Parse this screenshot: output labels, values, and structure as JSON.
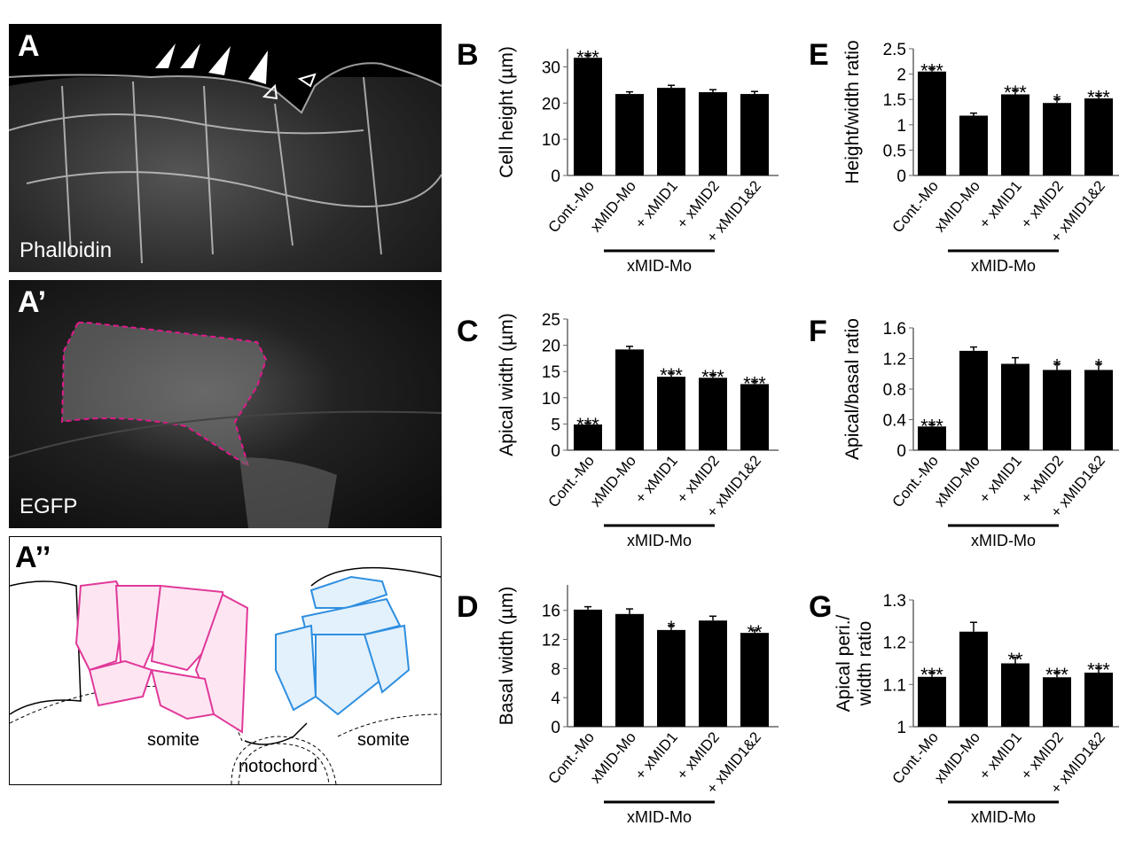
{
  "panels_images": {
    "A": {
      "letter": "A",
      "stain": "Phalloidin"
    },
    "A1": {
      "letter": "A’",
      "stain": "EGFP",
      "outline_color": "#e0198a"
    },
    "A2": {
      "letter": "A’’",
      "labels": [
        "somite",
        "notochord",
        "somite"
      ],
      "colors": {
        "left_cells": "#e0399a",
        "right_cells": "#2f8fe0"
      }
    }
  },
  "chart_data": [
    {
      "panel": "B",
      "type": "bar",
      "ylabel": "Cell height (µm)",
      "categories": [
        "Cont.-Mo",
        "xMID-Mo",
        "+ xMID1",
        "+ xMID2",
        "+ xMID1&2"
      ],
      "values": [
        32.5,
        22.5,
        24.2,
        23.0,
        22.5
      ],
      "errors": [
        0.7,
        0.6,
        0.7,
        0.7,
        0.7
      ],
      "significance": [
        "***",
        "",
        "",
        "",
        ""
      ],
      "ylim": [
        0,
        35
      ],
      "yticks": [
        0,
        10,
        20,
        30
      ],
      "group_label": "xMID-Mo",
      "bar_color": "#000000"
    },
    {
      "panel": "C",
      "type": "bar",
      "ylabel": "Apical width (µm)",
      "categories": [
        "Cont.-Mo",
        "xMID-Mo",
        "+ xMID1",
        "+ xMID2",
        "+ xMID1&2"
      ],
      "values": [
        4.9,
        19.2,
        14.0,
        13.8,
        12.6
      ],
      "errors": [
        0.3,
        0.6,
        0.7,
        0.6,
        0.5
      ],
      "significance": [
        "***",
        "",
        "***",
        "***",
        "***"
      ],
      "ylim": [
        0,
        25
      ],
      "yticks": [
        0,
        5,
        10,
        15,
        20,
        25
      ],
      "group_label": "xMID-Mo",
      "bar_color": "#000000"
    },
    {
      "panel": "D",
      "type": "bar",
      "ylabel": "Basal width (µm)",
      "categories": [
        "Cont.-Mo",
        "xMID-Mo",
        "+ xMID1",
        "+ xMID2",
        "+ xMID1&2"
      ],
      "values": [
        16.1,
        15.5,
        13.3,
        14.6,
        12.9
      ],
      "errors": [
        0.4,
        0.7,
        0.6,
        0.6,
        0.4
      ],
      "significance": [
        "",
        "",
        "*",
        "",
        "**"
      ],
      "ylim": [
        0,
        19.5
      ],
      "yticks": [
        0,
        4,
        8,
        12,
        16
      ],
      "group_label": "xMID-Mo",
      "bar_color": "#000000"
    },
    {
      "panel": "E",
      "type": "bar",
      "ylabel": "Height/width ratio",
      "categories": [
        "Cont.-Mo",
        "xMID-Mo",
        "+ xMID1",
        "+ xMID2",
        "+ xMID1&2"
      ],
      "values": [
        2.05,
        1.18,
        1.6,
        1.43,
        1.52
      ],
      "errors": [
        0.06,
        0.05,
        0.08,
        0.08,
        0.06
      ],
      "significance": [
        "***",
        "",
        "***",
        "*",
        "***"
      ],
      "ylim": [
        0,
        2.5
      ],
      "yticks": [
        0,
        0.5,
        1,
        1.5,
        2,
        2.5
      ],
      "group_label": "xMID-Mo",
      "bar_color": "#000000"
    },
    {
      "panel": "F",
      "type": "bar",
      "ylabel": "Apical/basal ratio",
      "categories": [
        "Cont.-Mo",
        "xMID-Mo",
        "+ xMID1",
        "+ xMID2",
        "+ xMID1&2"
      ],
      "values": [
        0.31,
        1.3,
        1.13,
        1.05,
        1.05
      ],
      "errors": [
        0.03,
        0.05,
        0.08,
        0.08,
        0.08
      ],
      "significance": [
        "***",
        "",
        "",
        "*",
        "*"
      ],
      "ylim": [
        0,
        1.6
      ],
      "yticks": [
        0,
        0.4,
        0.8,
        1.2,
        1.6
      ],
      "group_label": "xMID-Mo",
      "bar_color": "#000000"
    },
    {
      "panel": "G",
      "type": "bar",
      "ylabel": "Apical peri./ width ratio",
      "ylabel_lines": [
        "Apical peri./",
        "width ratio"
      ],
      "categories": [
        "Cont.-Mo",
        "xMID-Mo",
        "+ xMID1",
        "+ xMID2",
        "+ xMID1&2"
      ],
      "values": [
        1.118,
        1.225,
        1.15,
        1.117,
        1.128
      ],
      "errors": [
        0.01,
        0.022,
        0.014,
        0.011,
        0.011
      ],
      "significance": [
        "***",
        "",
        "**",
        "***",
        "***"
      ],
      "ylim": [
        1,
        1.3
      ],
      "yticks": [
        1,
        1.1,
        1.2,
        1.3
      ],
      "group_label": "xMID-Mo",
      "bar_color": "#000000"
    }
  ]
}
